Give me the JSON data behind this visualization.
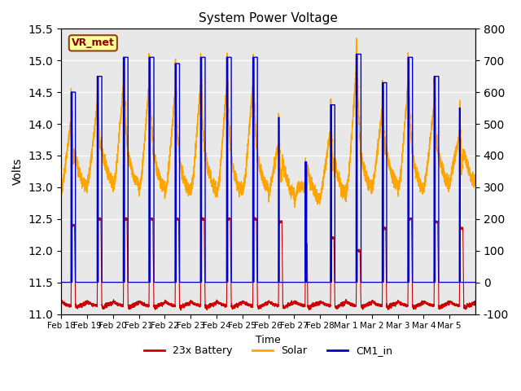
{
  "title": "System Power Voltage",
  "xlabel": "Time",
  "ylabel_left": "Volts",
  "ylim_left": [
    11.0,
    15.5
  ],
  "ylim_right": [
    -100,
    800
  ],
  "annotation_text": "VR_met",
  "annotation_color": "#8B0000",
  "annotation_bg": "#FFFF99",
  "annotation_border": "#8B4513",
  "legend_entries": [
    "23x Battery",
    "Solar",
    "CM1_in"
  ],
  "legend_colors": [
    "#CC0000",
    "#FFA500",
    "#0000CC"
  ],
  "bg_color": "#E8E8E8",
  "grid_color": "white",
  "n_days": 16,
  "x_tick_labels": [
    "Feb 18",
    "Feb 19",
    "Feb 20",
    "Feb 21",
    "Feb 22",
    "Feb 23",
    "Feb 24",
    "Feb 25",
    "Feb 26",
    "Feb 27",
    "Feb 28",
    "Mar 1",
    "Mar 2",
    "Mar 3",
    "Mar 4",
    "Mar 5"
  ],
  "yticks_left": [
    11.0,
    11.5,
    12.0,
    12.5,
    13.0,
    13.5,
    14.0,
    14.5,
    15.0,
    15.5
  ],
  "yticks_right": [
    -100,
    0,
    100,
    200,
    300,
    400,
    500,
    600,
    700,
    800
  ]
}
